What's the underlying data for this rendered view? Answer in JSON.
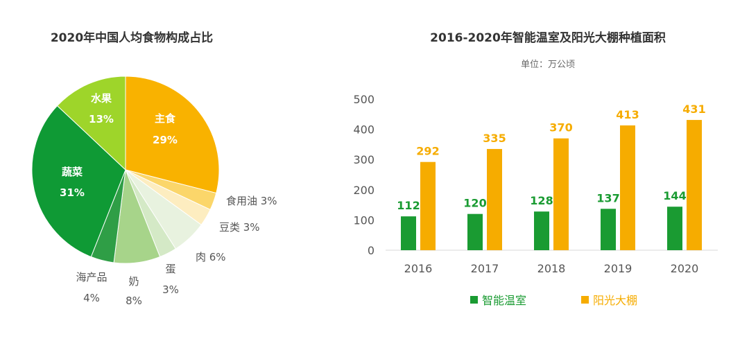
{
  "pie_title": "2020年中国人均食物构成占比",
  "bar_title": "2016-2020年智能温室及阳光大棚种植面积",
  "bar_subtitle": "单位：万公顷",
  "legend": {
    "series1": "智能温室",
    "series2": "阳光大棚"
  },
  "colors": {
    "green": "#1a9b32",
    "orange": "#f6ac00",
    "axis_text": "#555555"
  },
  "chart_data": [
    {
      "type": "pie",
      "title": "2020年中国人均食物构成占比",
      "slices": [
        {
          "label": "主食",
          "value": 29,
          "pct": "29%",
          "color": "#f9b200"
        },
        {
          "label": "食用油",
          "value": 3,
          "pct": "3%",
          "color": "#fbd66a"
        },
        {
          "label": "豆类",
          "value": 3,
          "pct": "3%",
          "color": "#fdedc0"
        },
        {
          "label": "肉",
          "value": 6,
          "pct": "6%",
          "color": "#e8f2df"
        },
        {
          "label": "蛋",
          "value": 3,
          "pct": "3%",
          "color": "#d4e9c6"
        },
        {
          "label": "奶",
          "value": 8,
          "pct": "8%",
          "color": "#a7d48a"
        },
        {
          "label": "海产品",
          "value": 4,
          "pct": "4%",
          "color": "#2f9e46"
        },
        {
          "label": "蔬菜",
          "value": 31,
          "pct": "31%",
          "color": "#0f9a35"
        },
        {
          "label": "水果",
          "value": 13,
          "pct": "13%",
          "color": "#9ed52a"
        }
      ]
    },
    {
      "type": "bar",
      "title": "2016-2020年智能温室及阳光大棚种植面积",
      "subtitle": "单位：万公顷",
      "categories": [
        "2016",
        "2017",
        "2018",
        "2019",
        "2020"
      ],
      "series": [
        {
          "name": "智能温室",
          "values": [
            112,
            120,
            128,
            137,
            144
          ],
          "color": "#1a9b32"
        },
        {
          "name": "阳光大棚",
          "values": [
            292,
            335,
            370,
            413,
            431
          ],
          "color": "#f6ac00"
        }
      ],
      "ylim": [
        0,
        500
      ],
      "yticks": [
        0,
        100,
        200,
        300,
        400,
        500
      ],
      "grid": false,
      "legend": "bottom"
    }
  ]
}
